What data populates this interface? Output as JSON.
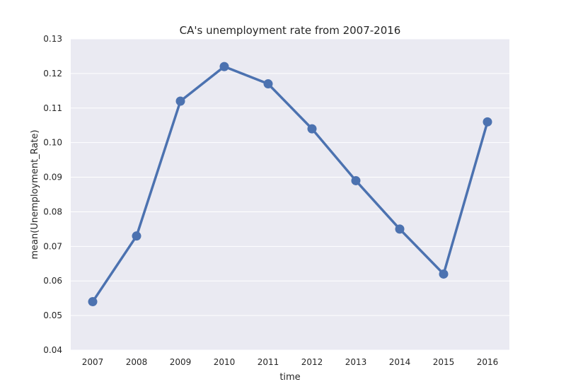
{
  "chart_data": {
    "type": "line",
    "title": "CA's unemployment rate from 2007-2016",
    "xlabel": "time",
    "ylabel": "mean(Unemployment_Rate)",
    "categories": [
      "2007",
      "2008",
      "2009",
      "2010",
      "2011",
      "2012",
      "2013",
      "2014",
      "2015",
      "2016"
    ],
    "series": [
      {
        "values": [
          0.054,
          0.073,
          0.112,
          0.122,
          0.117,
          0.104,
          0.089,
          0.075,
          0.062,
          0.106
        ],
        "color": "#4c72b0"
      }
    ],
    "ylim": [
      0.04,
      0.13
    ],
    "yticks": [
      "0.04",
      "0.05",
      "0.06",
      "0.07",
      "0.08",
      "0.09",
      "0.10",
      "0.11",
      "0.12",
      "0.13"
    ],
    "grid": true,
    "background_color": "#eaeaf2",
    "grid_color": "#ffffff"
  }
}
